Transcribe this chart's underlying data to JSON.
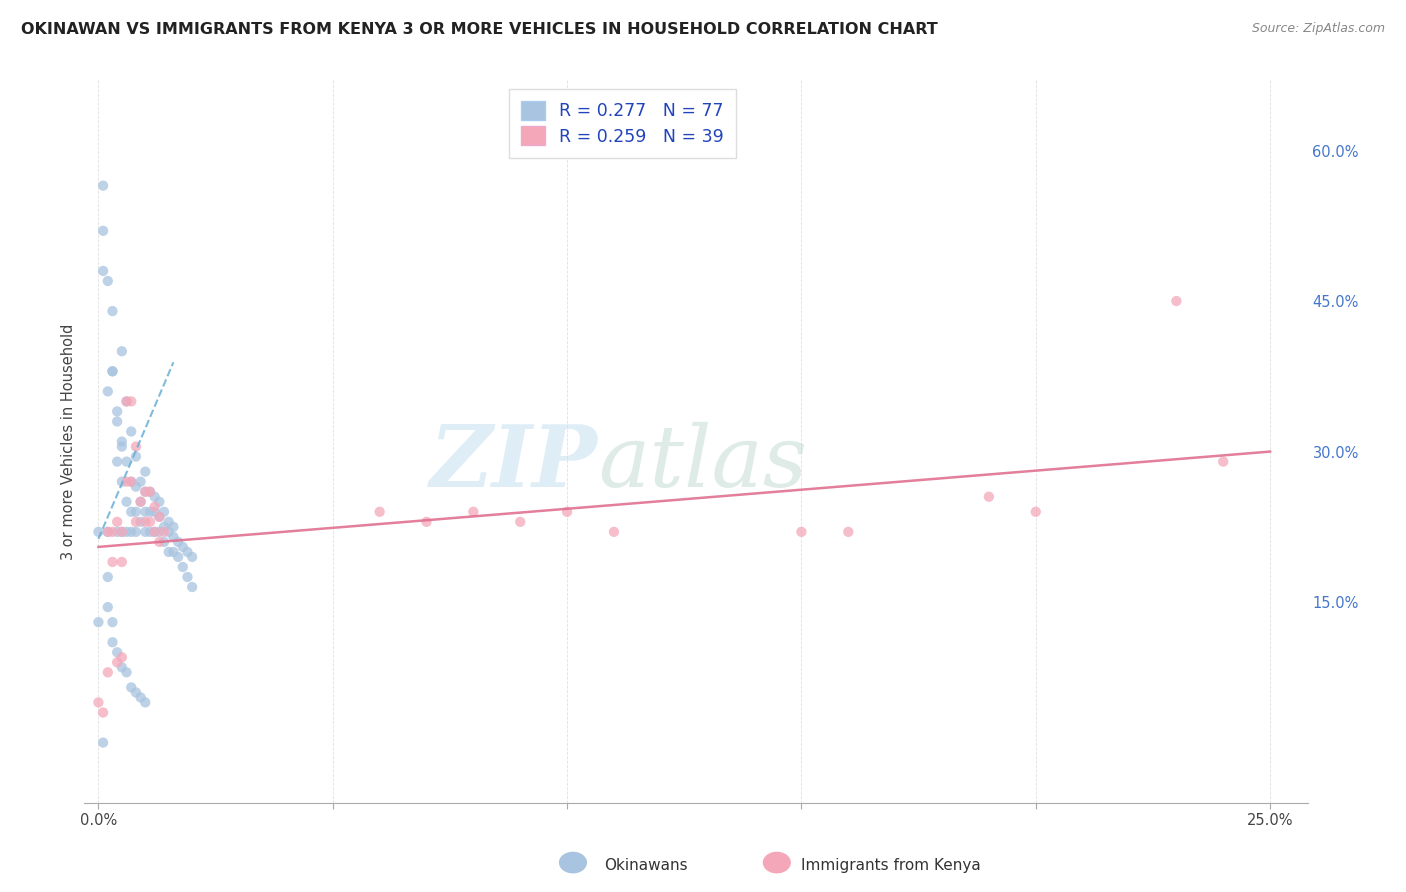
{
  "title": "OKINAWAN VS IMMIGRANTS FROM KENYA 3 OR MORE VEHICLES IN HOUSEHOLD CORRELATION CHART",
  "source": "Source: ZipAtlas.com",
  "ylabel": "3 or more Vehicles in Household",
  "xlim": [
    -0.003,
    0.258
  ],
  "ylim": [
    -0.05,
    0.67
  ],
  "x_ticks": [
    0.0,
    0.05,
    0.1,
    0.15,
    0.2,
    0.25
  ],
  "x_tick_labels": [
    "0.0%",
    "",
    "",
    "",
    "",
    "25.0%"
  ],
  "y_ticks_right": [
    0.0,
    0.15,
    0.3,
    0.45,
    0.6
  ],
  "y_tick_labels_right": [
    "",
    "15.0%",
    "30.0%",
    "45.0%",
    "60.0%"
  ],
  "legend_label1": "Okinawans",
  "legend_label2": "Immigrants from Kenya",
  "R1": "0.277",
  "N1": "77",
  "R2": "0.259",
  "N2": "39",
  "color_blue": "#a8c4e0",
  "color_pink": "#f4a7b9",
  "trendline_blue_color": "#6aaed6",
  "trendline_pink_color": "#e07090",
  "watermark_zip": "ZIP",
  "watermark_atlas": "atlas",
  "blue_x": [
    0.001,
    0.001,
    0.002,
    0.002,
    0.003,
    0.003,
    0.003,
    0.004,
    0.004,
    0.004,
    0.005,
    0.005,
    0.005,
    0.005,
    0.006,
    0.006,
    0.006,
    0.006,
    0.007,
    0.007,
    0.007,
    0.007,
    0.008,
    0.008,
    0.008,
    0.008,
    0.009,
    0.009,
    0.009,
    0.01,
    0.01,
    0.01,
    0.01,
    0.011,
    0.011,
    0.011,
    0.012,
    0.012,
    0.012,
    0.013,
    0.013,
    0.013,
    0.014,
    0.014,
    0.014,
    0.015,
    0.015,
    0.015,
    0.016,
    0.016,
    0.016,
    0.017,
    0.017,
    0.018,
    0.018,
    0.019,
    0.019,
    0.02,
    0.02,
    0.0,
    0.0,
    0.001,
    0.002,
    0.002,
    0.003,
    0.004,
    0.005,
    0.006,
    0.007,
    0.008,
    0.009,
    0.01,
    0.001,
    0.002,
    0.003,
    0.004,
    0.005
  ],
  "blue_y": [
    0.565,
    0.52,
    0.47,
    0.22,
    0.44,
    0.38,
    0.13,
    0.33,
    0.29,
    0.22,
    0.4,
    0.31,
    0.27,
    0.22,
    0.35,
    0.29,
    0.25,
    0.22,
    0.32,
    0.27,
    0.24,
    0.22,
    0.295,
    0.265,
    0.24,
    0.22,
    0.27,
    0.25,
    0.23,
    0.28,
    0.26,
    0.24,
    0.22,
    0.26,
    0.24,
    0.22,
    0.255,
    0.24,
    0.22,
    0.25,
    0.235,
    0.22,
    0.24,
    0.225,
    0.21,
    0.23,
    0.22,
    0.2,
    0.225,
    0.215,
    0.2,
    0.21,
    0.195,
    0.205,
    0.185,
    0.2,
    0.175,
    0.195,
    0.165,
    0.22,
    0.13,
    0.01,
    0.175,
    0.145,
    0.11,
    0.1,
    0.085,
    0.08,
    0.065,
    0.06,
    0.055,
    0.05,
    0.48,
    0.36,
    0.38,
    0.34,
    0.305
  ],
  "pink_x": [
    0.0,
    0.001,
    0.002,
    0.003,
    0.003,
    0.004,
    0.005,
    0.005,
    0.006,
    0.006,
    0.007,
    0.007,
    0.008,
    0.008,
    0.009,
    0.01,
    0.01,
    0.011,
    0.011,
    0.012,
    0.012,
    0.013,
    0.013,
    0.014,
    0.06,
    0.07,
    0.08,
    0.09,
    0.1,
    0.11,
    0.15,
    0.16,
    0.19,
    0.2,
    0.23,
    0.24,
    0.002,
    0.004,
    0.005
  ],
  "pink_y": [
    0.05,
    0.04,
    0.22,
    0.22,
    0.19,
    0.23,
    0.22,
    0.19,
    0.35,
    0.27,
    0.35,
    0.27,
    0.305,
    0.23,
    0.25,
    0.26,
    0.23,
    0.26,
    0.23,
    0.245,
    0.22,
    0.235,
    0.21,
    0.22,
    0.24,
    0.23,
    0.24,
    0.23,
    0.24,
    0.22,
    0.22,
    0.22,
    0.255,
    0.24,
    0.45,
    0.29,
    0.08,
    0.09,
    0.095
  ],
  "blue_trend_x": [
    0.0,
    0.016
  ],
  "blue_trend_y_intercept": 0.213,
  "blue_trend_slope": 11.0,
  "pink_trend_x": [
    0.0,
    0.25
  ],
  "pink_trend_y_intercept": 0.205,
  "pink_trend_slope": 0.38
}
